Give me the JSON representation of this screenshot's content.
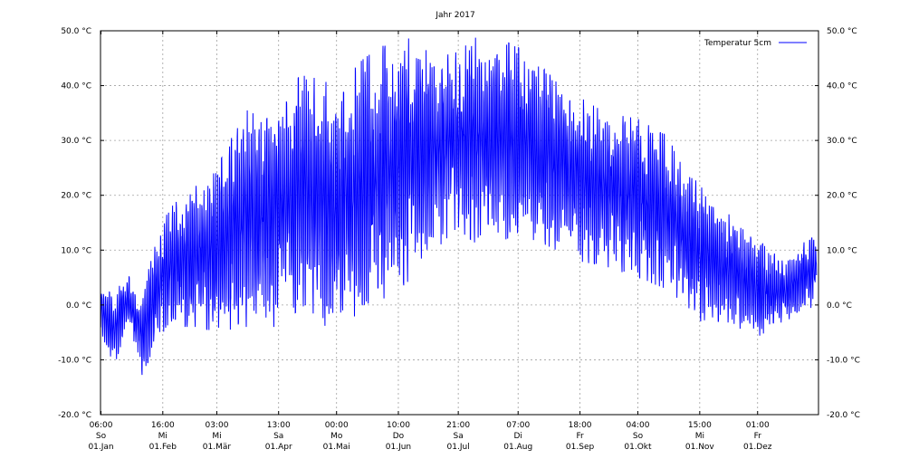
{
  "chart_data": {
    "type": "line",
    "title": "Jahr 2017",
    "xlabel": "",
    "ylabel": "",
    "ylim": [
      -20,
      50
    ],
    "y_unit": "°C",
    "yticks": [
      -20,
      -10,
      0,
      10,
      20,
      30,
      40,
      50
    ],
    "ytick_labels": [
      "-20.0 °C",
      "-10.0 °C",
      "0.0 °C",
      "10.0 °C",
      "20.0 °C",
      "30.0 °C",
      "40.0 °C",
      "50.0 °C"
    ],
    "x_ticks": [
      {
        "date": "2017-01-01",
        "time": "06:00",
        "weekday": "So",
        "label": "01.Jan"
      },
      {
        "date": "2017-02-01",
        "time": "16:00",
        "weekday": "Mi",
        "label": "01.Feb"
      },
      {
        "date": "2017-03-01",
        "time": "03:00",
        "weekday": "Mi",
        "label": "01.Mär"
      },
      {
        "date": "2017-04-01",
        "time": "13:00",
        "weekday": "Sa",
        "label": "01.Apr"
      },
      {
        "date": "2017-05-01",
        "time": "00:00",
        "weekday": "Mo",
        "label": "01.Mai"
      },
      {
        "date": "2017-06-01",
        "time": "10:00",
        "weekday": "Do",
        "label": "01.Jun"
      },
      {
        "date": "2017-07-01",
        "time": "21:00",
        "weekday": "Sa",
        "label": "01.Jul"
      },
      {
        "date": "2017-08-01",
        "time": "07:00",
        "weekday": "Di",
        "label": "01.Aug"
      },
      {
        "date": "2017-09-01",
        "time": "18:00",
        "weekday": "Fr",
        "label": "01.Sep"
      },
      {
        "date": "2017-10-01",
        "time": "04:00",
        "weekday": "So",
        "label": "01.Okt"
      },
      {
        "date": "2017-11-01",
        "time": "15:00",
        "weekday": "Mi",
        "label": "01.Nov"
      },
      {
        "date": "2017-12-01",
        "time": "01:00",
        "weekday": "Fr",
        "label": "01.Dez"
      }
    ],
    "grid": true,
    "legend_position": "top-right",
    "series": [
      {
        "name": "Temperatur 5cm",
        "color": "#0000ff",
        "x_unit": "date",
        "envelope": {
          "dates": [
            "2017-01-01",
            "2017-01-08",
            "2017-01-15",
            "2017-01-22",
            "2017-02-01",
            "2017-02-10",
            "2017-02-20",
            "2017-03-01",
            "2017-03-15",
            "2017-04-01",
            "2017-04-15",
            "2017-05-01",
            "2017-05-15",
            "2017-06-01",
            "2017-06-15",
            "2017-07-01",
            "2017-07-15",
            "2017-08-01",
            "2017-08-15",
            "2017-09-01",
            "2017-09-15",
            "2017-10-01",
            "2017-10-15",
            "2017-11-01",
            "2017-11-15",
            "2017-12-01",
            "2017-12-15",
            "2017-12-31"
          ],
          "max": [
            3,
            2,
            6,
            2,
            15,
            20,
            22,
            25,
            35,
            40,
            42,
            40,
            45,
            49,
            48,
            46,
            50,
            47,
            44,
            38,
            35,
            34,
            31,
            22,
            17,
            12,
            8,
            14
          ],
          "min": [
            -5,
            -11,
            -4,
            -13,
            -5,
            -4,
            -4,
            -5,
            -4,
            -4,
            0,
            -6,
            0,
            2,
            8,
            14,
            10,
            13,
            11,
            8,
            7,
            5,
            3,
            -3,
            -3,
            -6,
            -3,
            0
          ]
        }
      }
    ]
  }
}
